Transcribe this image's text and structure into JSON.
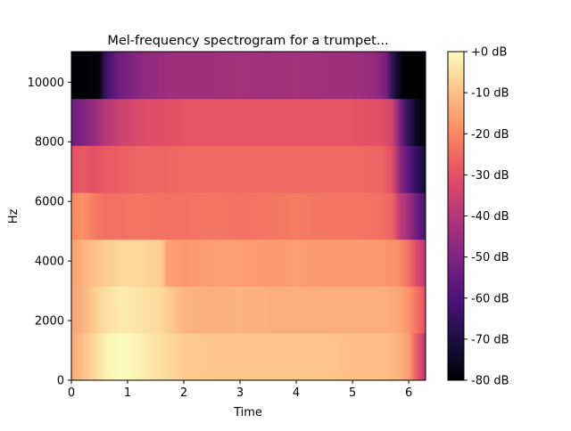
{
  "chart_data": {
    "type": "heatmap",
    "title": "Mel-frequency spectrogram for a trumpet...",
    "xlabel": "Time",
    "ylabel": "Hz",
    "xlim": [
      0,
      6.3
    ],
    "ylim": [
      0,
      11025
    ],
    "x_ticks": [
      0,
      1,
      2,
      3,
      4,
      5,
      6
    ],
    "y_ticks": [
      0,
      2000,
      4000,
      6000,
      8000,
      10000
    ],
    "y_tick_labels": [
      "0",
      "2000",
      "4000",
      "6000",
      "8000",
      "10000"
    ],
    "colorbar": {
      "range_db": [
        -80,
        0
      ],
      "ticks_db": [
        0,
        -10,
        -20,
        -30,
        -40,
        -50,
        -60,
        -70,
        -80
      ],
      "tick_labels": [
        "+0 dB",
        "-10 dB",
        "-20 dB",
        "-30 dB",
        "-40 dB",
        "-50 dB",
        "-60 dB",
        "-70 dB",
        "-80 dB"
      ]
    },
    "colormap": "magma",
    "bands": [
      {
        "y_range": [
          0,
          1580
        ],
        "time_db": [
          [
            0,
            -14
          ],
          [
            0.2,
            -10
          ],
          [
            0.4,
            -6
          ],
          [
            0.6,
            -2
          ],
          [
            0.9,
            0
          ],
          [
            1.2,
            -2
          ],
          [
            1.6,
            -5
          ],
          [
            2.0,
            -8
          ],
          [
            2.5,
            -9
          ],
          [
            3.0,
            -9
          ],
          [
            3.5,
            -9
          ],
          [
            4.0,
            -9
          ],
          [
            4.5,
            -9
          ],
          [
            5.0,
            -10
          ],
          [
            5.5,
            -10
          ],
          [
            5.8,
            -12
          ],
          [
            6.0,
            -16
          ],
          [
            6.15,
            -28
          ],
          [
            6.3,
            -40
          ]
        ]
      },
      {
        "y_range": [
          1580,
          3150
        ],
        "time_db": [
          [
            0,
            -15
          ],
          [
            0.2,
            -12
          ],
          [
            0.4,
            -8
          ],
          [
            0.6,
            -5
          ],
          [
            0.9,
            -3
          ],
          [
            1.2,
            -4
          ],
          [
            1.6,
            -6
          ],
          [
            2.0,
            -12
          ],
          [
            2.5,
            -13
          ],
          [
            3.0,
            -12
          ],
          [
            3.5,
            -13
          ],
          [
            4.0,
            -13
          ],
          [
            4.5,
            -13
          ],
          [
            5.0,
            -13
          ],
          [
            5.5,
            -13
          ],
          [
            5.8,
            -14
          ],
          [
            6.0,
            -18
          ],
          [
            6.15,
            -24
          ],
          [
            6.3,
            -30
          ]
        ]
      },
      {
        "y_range": [
          3150,
          4730
        ],
        "time_db": [
          [
            0,
            -16
          ],
          [
            0.2,
            -12
          ],
          [
            0.4,
            -10
          ],
          [
            0.6,
            -8
          ],
          [
            0.9,
            -6
          ],
          [
            1.2,
            -6
          ],
          [
            1.6,
            -8
          ],
          [
            1.7,
            -15
          ],
          [
            2.0,
            -17
          ],
          [
            2.5,
            -16
          ],
          [
            3.0,
            -16
          ],
          [
            3.5,
            -17
          ],
          [
            4.0,
            -16
          ],
          [
            4.5,
            -17
          ],
          [
            5.0,
            -17
          ],
          [
            5.5,
            -17
          ],
          [
            5.8,
            -18
          ],
          [
            6.0,
            -24
          ],
          [
            6.15,
            -32
          ],
          [
            6.3,
            -38
          ]
        ]
      },
      {
        "y_range": [
          4730,
          6300
        ],
        "time_db": [
          [
            0,
            -20
          ],
          [
            0.2,
            -18
          ],
          [
            0.4,
            -22
          ],
          [
            0.6,
            -24
          ],
          [
            0.9,
            -24
          ],
          [
            1.2,
            -23
          ],
          [
            1.6,
            -24
          ],
          [
            2.0,
            -24
          ],
          [
            2.5,
            -23
          ],
          [
            3.0,
            -24
          ],
          [
            3.5,
            -23
          ],
          [
            4.0,
            -22
          ],
          [
            4.5,
            -23
          ],
          [
            5.0,
            -23
          ],
          [
            5.5,
            -24
          ],
          [
            5.7,
            -26
          ],
          [
            5.85,
            -38
          ],
          [
            6.0,
            -44
          ],
          [
            6.15,
            -54
          ],
          [
            6.3,
            -62
          ]
        ]
      },
      {
        "y_range": [
          6300,
          7880
        ],
        "time_db": [
          [
            0,
            -30
          ],
          [
            0.2,
            -28
          ],
          [
            0.4,
            -30
          ],
          [
            0.6,
            -28
          ],
          [
            0.9,
            -27
          ],
          [
            1.2,
            -26
          ],
          [
            1.6,
            -26
          ],
          [
            2.0,
            -25
          ],
          [
            2.5,
            -25
          ],
          [
            3.0,
            -25
          ],
          [
            3.5,
            -25
          ],
          [
            4.0,
            -25
          ],
          [
            4.5,
            -25
          ],
          [
            5.0,
            -25
          ],
          [
            5.5,
            -26
          ],
          [
            5.7,
            -30
          ],
          [
            5.85,
            -48
          ],
          [
            6.0,
            -58
          ],
          [
            6.15,
            -66
          ],
          [
            6.3,
            -72
          ]
        ]
      },
      {
        "y_range": [
          7880,
          9450
        ],
        "time_db": [
          [
            0,
            -54
          ],
          [
            0.2,
            -50
          ],
          [
            0.4,
            -46
          ],
          [
            0.6,
            -40
          ],
          [
            0.9,
            -35
          ],
          [
            1.2,
            -32
          ],
          [
            1.6,
            -31
          ],
          [
            2.0,
            -29
          ],
          [
            2.5,
            -29
          ],
          [
            3.0,
            -29
          ],
          [
            3.5,
            -29
          ],
          [
            4.0,
            -29
          ],
          [
            4.5,
            -29
          ],
          [
            5.0,
            -29
          ],
          [
            5.5,
            -30
          ],
          [
            5.7,
            -34
          ],
          [
            5.85,
            -52
          ],
          [
            6.0,
            -66
          ],
          [
            6.15,
            -76
          ],
          [
            6.3,
            -80
          ]
        ]
      },
      {
        "y_range": [
          9450,
          11025
        ],
        "time_db": [
          [
            0,
            -80
          ],
          [
            0.3,
            -80
          ],
          [
            0.5,
            -78
          ],
          [
            0.6,
            -64
          ],
          [
            0.8,
            -55
          ],
          [
            1.2,
            -48
          ],
          [
            1.6,
            -45
          ],
          [
            2.0,
            -44
          ],
          [
            2.5,
            -44
          ],
          [
            3.0,
            -43
          ],
          [
            3.5,
            -44
          ],
          [
            4.0,
            -43
          ],
          [
            4.5,
            -44
          ],
          [
            5.0,
            -44
          ],
          [
            5.4,
            -46
          ],
          [
            5.6,
            -52
          ],
          [
            5.75,
            -70
          ],
          [
            5.9,
            -80
          ],
          [
            6.3,
            -80
          ]
        ]
      }
    ]
  }
}
